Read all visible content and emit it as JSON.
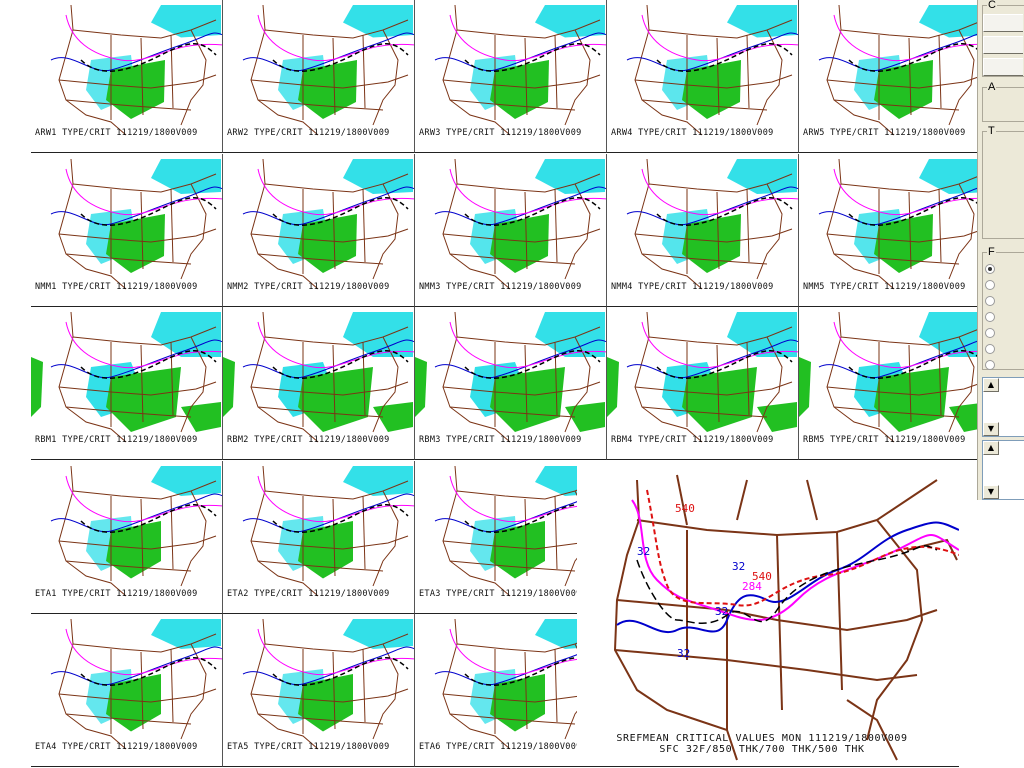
{
  "panels": [
    {
      "label": "ARW1 TYPE/CRIT 111219/1800V009",
      "row": 0,
      "col": 0,
      "snow": 0.5,
      "rain": 0.6
    },
    {
      "label": "ARW2 TYPE/CRIT 111219/1800V009",
      "row": 0,
      "col": 1,
      "snow": 0.5,
      "rain": 0.6
    },
    {
      "label": "ARW3 TYPE/CRIT 111219/1800V009",
      "row": 0,
      "col": 2,
      "snow": 0.5,
      "rain": 0.6
    },
    {
      "label": "ARW4 TYPE/CRIT 111219/1800V009",
      "row": 0,
      "col": 3,
      "snow": 0.5,
      "rain": 0.6
    },
    {
      "label": "ARW5 TYPE/CRIT 111219/1800V009",
      "row": 0,
      "col": 4,
      "snow": 0.5,
      "rain": 0.6
    },
    {
      "label": "NMM1 TYPE/CRIT 111219/1800V009",
      "row": 1,
      "col": 0,
      "snow": 0.6,
      "rain": 0.6
    },
    {
      "label": "NMM2 TYPE/CRIT 111219/1800V009",
      "row": 1,
      "col": 1,
      "snow": 0.6,
      "rain": 0.6
    },
    {
      "label": "NMM3 TYPE/CRIT 111219/1800V009",
      "row": 1,
      "col": 2,
      "snow": 0.6,
      "rain": 0.6
    },
    {
      "label": "NMM4 TYPE/CRIT 111219/1800V009",
      "row": 1,
      "col": 3,
      "snow": 0.6,
      "rain": 0.6
    },
    {
      "label": "NMM5 TYPE/CRIT 111219/1800V009",
      "row": 1,
      "col": 4,
      "snow": 0.6,
      "rain": 0.6
    },
    {
      "label": "RBM1 TYPE/CRIT 111219/1800V009",
      "row": 2,
      "col": 0,
      "snow": 1.0,
      "rain": 1.0
    },
    {
      "label": "RBM2 TYPE/CRIT 111219/1800V009",
      "row": 2,
      "col": 1,
      "snow": 1.0,
      "rain": 1.0
    },
    {
      "label": "RBM3 TYPE/CRIT 111219/1800V009",
      "row": 2,
      "col": 2,
      "snow": 1.0,
      "rain": 1.0
    },
    {
      "label": "RBM4 TYPE/CRIT 111219/1800V009",
      "row": 2,
      "col": 3,
      "snow": 1.0,
      "rain": 1.0
    },
    {
      "label": "RBM5 TYPE/CRIT 111219/1800V009",
      "row": 2,
      "col": 4,
      "snow": 1.0,
      "rain": 1.0
    },
    {
      "label": "ETA1 TYPE/CRIT 111219/1800V009",
      "row": 3,
      "col": 0,
      "snow": 0.4,
      "rain": 0.5
    },
    {
      "label": "ETA2 TYPE/CRIT 111219/1800V009",
      "row": 3,
      "col": 1,
      "snow": 0.4,
      "rain": 0.5
    },
    {
      "label": "ETA3 TYPE/CRIT 111219/1800V009",
      "row": 3,
      "col": 2,
      "snow": 0.4,
      "rain": 0.5
    },
    {
      "label": "ETA4 TYPE/CRIT 111219/1800V009",
      "row": 4,
      "col": 0,
      "snow": 0.4,
      "rain": 0.5
    },
    {
      "label": "ETA5 TYPE/CRIT 111219/1800V009",
      "row": 4,
      "col": 1,
      "snow": 0.4,
      "rain": 0.5
    },
    {
      "label": "ETA6 TYPE/CRIT 111219/1800V009",
      "row": 4,
      "col": 2,
      "snow": 0.4,
      "rain": 0.5
    }
  ],
  "mean_panel": {
    "title_line1": "SREFMEAN CRITICAL VALUES MON 111219/1800V009",
    "title_line2": "SFC 32F/850 THK/700 THK/500 THK",
    "contour_labels": [
      "540",
      "32",
      "32",
      "540",
      "284",
      "32",
      "32"
    ]
  },
  "legend_colors": {
    "borders": "#7b3416",
    "snow": "#33e0e8",
    "rain": "#22c022",
    "sfc_32f": "#0000cc",
    "thk_850": "#000000",
    "thk_700": "#ff00ff",
    "thk_500": "#dd1111"
  },
  "sidebar": {
    "group_labels": [
      "C",
      "A",
      "T",
      "F"
    ],
    "radio_count": 7,
    "radio_checked_index": 0,
    "spinner_up": "▲",
    "spinner_down": "▼"
  }
}
